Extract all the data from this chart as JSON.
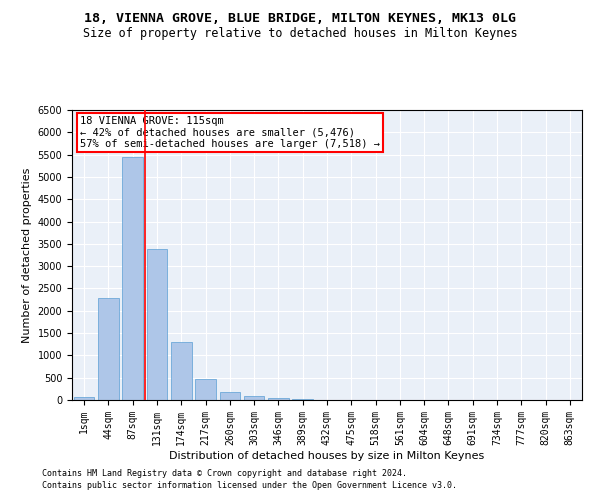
{
  "title1": "18, VIENNA GROVE, BLUE BRIDGE, MILTON KEYNES, MK13 0LG",
  "title2": "Size of property relative to detached houses in Milton Keynes",
  "xlabel": "Distribution of detached houses by size in Milton Keynes",
  "ylabel": "Number of detached properties",
  "categories": [
    "1sqm",
    "44sqm",
    "87sqm",
    "131sqm",
    "174sqm",
    "217sqm",
    "260sqm",
    "303sqm",
    "346sqm",
    "389sqm",
    "432sqm",
    "475sqm",
    "518sqm",
    "561sqm",
    "604sqm",
    "648sqm",
    "691sqm",
    "734sqm",
    "777sqm",
    "820sqm",
    "863sqm"
  ],
  "values": [
    60,
    2290,
    5450,
    3380,
    1300,
    480,
    170,
    95,
    55,
    30,
    10,
    5,
    0,
    0,
    0,
    0,
    0,
    0,
    0,
    0,
    0
  ],
  "bar_color": "#aec6e8",
  "bar_edge_color": "#5a9fd4",
  "vline_color": "red",
  "vline_x": 2.5,
  "annotation_text": "18 VIENNA GROVE: 115sqm\n← 42% of detached houses are smaller (5,476)\n57% of semi-detached houses are larger (7,518) →",
  "ylim": [
    0,
    6500
  ],
  "yticks": [
    0,
    500,
    1000,
    1500,
    2000,
    2500,
    3000,
    3500,
    4000,
    4500,
    5000,
    5500,
    6000,
    6500
  ],
  "footer1": "Contains HM Land Registry data © Crown copyright and database right 2024.",
  "footer2": "Contains public sector information licensed under the Open Government Licence v3.0.",
  "bg_color": "#eaf0f8",
  "grid_color": "white",
  "title1_fontsize": 9.5,
  "title2_fontsize": 8.5,
  "xlabel_fontsize": 8,
  "ylabel_fontsize": 8,
  "tick_fontsize": 7,
  "footer_fontsize": 6,
  "ann_fontsize": 7.5
}
